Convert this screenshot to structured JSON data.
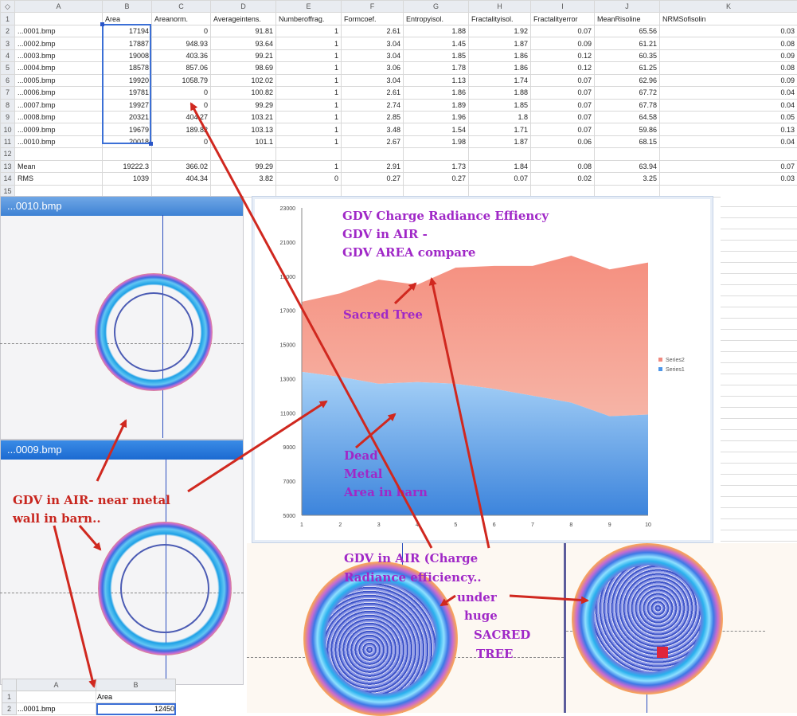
{
  "spreadsheet": {
    "column_letters": [
      "A",
      "B",
      "C",
      "D",
      "E",
      "F",
      "G",
      "H",
      "I",
      "J",
      "K"
    ],
    "headers": [
      "",
      "Area",
      "Areanorm.",
      "Averageintens.",
      "Numberoffrag.",
      "Formcoef.",
      "Entropyisol.",
      "Fractalityisol.",
      "Fractalityerror",
      "MeanRisoline",
      "NRMSofisolin"
    ],
    "rows": [
      {
        "n": "2",
        "cells": [
          "...0001.bmp",
          "17194",
          "0",
          "91.81",
          "1",
          "2.61",
          "1.88",
          "1.92",
          "0.07",
          "65.56",
          "0.03"
        ]
      },
      {
        "n": "3",
        "cells": [
          "...0002.bmp",
          "17887",
          "948.93",
          "93.64",
          "1",
          "3.04",
          "1.45",
          "1.87",
          "0.09",
          "61.21",
          "0.08"
        ]
      },
      {
        "n": "4",
        "cells": [
          "...0003.bmp",
          "19008",
          "403.36",
          "99.21",
          "1",
          "3.04",
          "1.85",
          "1.86",
          "0.12",
          "60.35",
          "0.09"
        ]
      },
      {
        "n": "5",
        "cells": [
          "...0004.bmp",
          "18578",
          "857.06",
          "98.69",
          "1",
          "3.06",
          "1.78",
          "1.86",
          "0.12",
          "61.25",
          "0.08"
        ]
      },
      {
        "n": "6",
        "cells": [
          "...0005.bmp",
          "19920",
          "1058.79",
          "102.02",
          "1",
          "3.04",
          "1.13",
          "1.74",
          "0.07",
          "62.96",
          "0.09"
        ]
      },
      {
        "n": "7",
        "cells": [
          "...0006.bmp",
          "19781",
          "0",
          "100.82",
          "1",
          "2.61",
          "1.86",
          "1.88",
          "0.07",
          "67.72",
          "0.04"
        ]
      },
      {
        "n": "8",
        "cells": [
          "...0007.bmp",
          "19927",
          "0",
          "99.29",
          "1",
          "2.74",
          "1.89",
          "1.85",
          "0.07",
          "67.78",
          "0.04"
        ]
      },
      {
        "n": "9",
        "cells": [
          "...0008.bmp",
          "20321",
          "404.27",
          "103.21",
          "1",
          "2.85",
          "1.96",
          "1.8",
          "0.07",
          "64.58",
          "0.05"
        ]
      },
      {
        "n": "10",
        "cells": [
          "...0009.bmp",
          "19679",
          "189.82",
          "103.13",
          "1",
          "3.48",
          "1.54",
          "1.71",
          "0.07",
          "59.86",
          "0.13"
        ]
      },
      {
        "n": "11",
        "cells": [
          "...0010.bmp",
          "20018",
          "0",
          "101.1",
          "1",
          "2.67",
          "1.98",
          "1.87",
          "0.06",
          "68.15",
          "0.04"
        ]
      },
      {
        "n": "12",
        "cells": [
          "",
          "",
          "",
          "",
          "",
          "",
          "",
          "",
          "",
          "",
          ""
        ]
      },
      {
        "n": "13",
        "cells": [
          "Mean",
          "19222.3",
          "366.02",
          "99.29",
          "1",
          "2.91",
          "1.73",
          "1.84",
          "0.08",
          "63.94",
          "0.07"
        ]
      },
      {
        "n": "14",
        "cells": [
          "RMS",
          "1039",
          "404.34",
          "3.82",
          "0",
          "0.27",
          "0.27",
          "0.07",
          "0.02",
          "3.25",
          "0.03"
        ]
      },
      {
        "n": "15",
        "cells": [
          "",
          "",
          "",
          "",
          "",
          "",
          "",
          "",
          "",
          "",
          ""
        ]
      }
    ]
  },
  "windows": {
    "top_title": "...0010.bmp",
    "mid_title": "...0009.bmp"
  },
  "mini_sheet": {
    "column_letters": [
      "A",
      "B"
    ],
    "row1": [
      "1",
      "",
      "Area"
    ],
    "row2": [
      "2",
      "...0001.bmp",
      "12450"
    ]
  },
  "chart_data": {
    "type": "area",
    "x": [
      1,
      2,
      3,
      4,
      5,
      6,
      7,
      8,
      9,
      10
    ],
    "ylim": [
      5000,
      23000
    ],
    "yticks": [
      "23000",
      "21000",
      "19000",
      "17000",
      "15000",
      "13000",
      "11000",
      "9000",
      "7000",
      "5000"
    ],
    "series": [
      {
        "name": "Series1",
        "values": [
          13400,
          13100,
          12700,
          12800,
          12700,
          12400,
          12000,
          11600,
          10800,
          10900
        ]
      },
      {
        "name": "Series2",
        "values": [
          4100,
          4900,
          6100,
          5700,
          6800,
          7200,
          7600,
          8600,
          8600,
          8900
        ]
      }
    ],
    "colors": {
      "series1": "#5aa6ee",
      "series2": "#f4a090"
    }
  },
  "annotations": {
    "chart_title_1": "GDV Charge Radiance Effiency",
    "chart_title_2": "GDV in AIR -",
    "chart_title_3": "GDV AREA compare",
    "sacred_tree": "Sacred Tree",
    "dead_1": "Dead",
    "dead_2": "Metal",
    "dead_3": "Area in barn",
    "air_metal_1": "GDV in AIR- near metal",
    "air_metal_2": "wall in barn..",
    "charge_1": "GDV in AIR (Charge",
    "charge_2": "Radiance efficiency..",
    "under": "under",
    "huge": "huge",
    "sacred": "SACRED",
    "tree": "TREE"
  }
}
